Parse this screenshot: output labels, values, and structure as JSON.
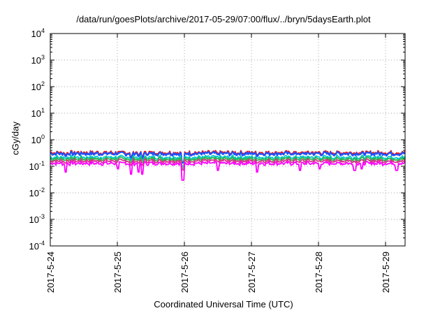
{
  "chart_data": {
    "type": "line",
    "title": "/data/run/goesPlots/archive/2017-05-29/07:00/flux/../bryn/5daysEarth.plot",
    "xlabel": "Coordinated Universal Time (UTC)",
    "ylabel": "cGy/day",
    "y_scale": "log",
    "ylim": [
      0.0001,
      10000
    ],
    "xlim": [
      "2017-05-24 00:00",
      "2017-05-29 07:00"
    ],
    "grid": true,
    "legend": "none",
    "x_ticks": [
      "2017-5-24",
      "2017-5-25",
      "2017-5-26",
      "2017-5-27",
      "2017-5-28",
      "2017-5-29"
    ],
    "y_ticks": [
      {
        "base": "10",
        "exp": "-4"
      },
      {
        "base": "10",
        "exp": "-3"
      },
      {
        "base": "10",
        "exp": "-2"
      },
      {
        "base": "10",
        "exp": "-1"
      },
      {
        "base": "10",
        "exp": "0"
      },
      {
        "base": "10",
        "exp": "1"
      },
      {
        "base": "10",
        "exp": "2"
      },
      {
        "base": "10",
        "exp": "3"
      },
      {
        "base": "10",
        "exp": "4"
      }
    ],
    "series": [
      {
        "color": "#e41a1c",
        "baseline": 0.33
      },
      {
        "color": "#1f4fff",
        "baseline": 0.3
      },
      {
        "color": "#00c8c8",
        "baseline": 0.22
      },
      {
        "color": "#2fb24a",
        "baseline": 0.19
      },
      {
        "color": "#d6338a",
        "baseline": 0.16
      },
      {
        "color": "#ff00ff",
        "baseline": 0.13
      }
    ],
    "dips": [
      {
        "x": "2017-05-24 05:30",
        "y": 0.06
      },
      {
        "x": "2017-05-25 00:10",
        "y": 0.08
      },
      {
        "x": "2017-05-25 05:00",
        "y": 0.05
      },
      {
        "x": "2017-05-25 07:30",
        "y": 0.06
      },
      {
        "x": "2017-05-25 09:00",
        "y": 0.05
      },
      {
        "x": "2017-05-25 23:30",
        "y": 0.03
      },
      {
        "x": "2017-05-26 12:00",
        "y": 0.07
      },
      {
        "x": "2017-05-27 02:00",
        "y": 0.06
      },
      {
        "x": "2017-05-27 17:30",
        "y": 0.07
      },
      {
        "x": "2017-05-28 00:30",
        "y": 0.08
      },
      {
        "x": "2017-05-28 13:00",
        "y": 0.07
      },
      {
        "x": "2017-05-28 15:30",
        "y": 0.08
      },
      {
        "x": "2017-05-29 04:00",
        "y": 0.07
      }
    ]
  }
}
